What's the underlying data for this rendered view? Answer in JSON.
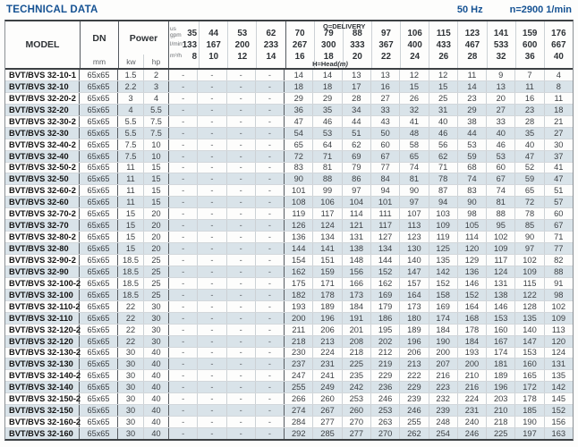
{
  "page": {
    "title": "TECHNICAL DATA",
    "frequency": "50 Hz",
    "speed": "n=2900 1/min"
  },
  "table": {
    "header": {
      "model": "MODEL",
      "dn": "DN",
      "dn_unit": "mm",
      "power": "Power",
      "kw": "kw",
      "hp": "hp",
      "delivery_label": "Q=DELIVERY",
      "head_label_main": "H=Head",
      "head_label_unit": "(m)",
      "unit_gpm_top": "us",
      "unit_gpm_bottom": "gpm",
      "unit_lmin": "l/min",
      "unit_m3h": "m³/h"
    },
    "flow": {
      "us_gpm": [
        35,
        44,
        53,
        62,
        70,
        79,
        88,
        97,
        106,
        115,
        123,
        141,
        159,
        176
      ],
      "l_min": [
        133,
        167,
        200,
        233,
        267,
        300,
        333,
        367,
        400,
        433,
        467,
        533,
        600,
        667
      ],
      "m3_h": [
        8,
        10,
        12,
        14,
        16,
        18,
        20,
        22,
        24,
        26,
        28,
        32,
        36,
        40
      ]
    },
    "rows": [
      {
        "model": "BVT/BVS 32-10-1",
        "dn": "65x65",
        "kw": "1.5",
        "hp": "2",
        "head": [
          "-",
          "-",
          "-",
          "-",
          14,
          14,
          13,
          13,
          12,
          12,
          11,
          9,
          7,
          4
        ]
      },
      {
        "model": "BVT/BVS 32-10",
        "dn": "65x65",
        "kw": "2.2",
        "hp": "3",
        "head": [
          "-",
          "-",
          "-",
          "-",
          18,
          18,
          17,
          16,
          15,
          15,
          14,
          13,
          11,
          8
        ]
      },
      {
        "model": "BVT/BVS 32-20-2",
        "dn": "65x65",
        "kw": "3",
        "hp": "4",
        "head": [
          "-",
          "-",
          "-",
          "-",
          29,
          29,
          28,
          27,
          26,
          25,
          23,
          20,
          16,
          11
        ]
      },
      {
        "model": "BVT/BVS 32-20",
        "dn": "65x65",
        "kw": "4",
        "hp": "5.5",
        "head": [
          "-",
          "-",
          "-",
          "-",
          36,
          35,
          34,
          33,
          32,
          31,
          29,
          27,
          23,
          18
        ]
      },
      {
        "model": "BVT/BVS 32-30-2",
        "dn": "65x65",
        "kw": "5.5",
        "hp": "7.5",
        "head": [
          "-",
          "-",
          "-",
          "-",
          47,
          46,
          44,
          43,
          41,
          40,
          38,
          33,
          28,
          21
        ]
      },
      {
        "model": "BVT/BVS 32-30",
        "dn": "65x65",
        "kw": "5.5",
        "hp": "7.5",
        "head": [
          "-",
          "-",
          "-",
          "-",
          54,
          53,
          51,
          50,
          48,
          46,
          44,
          40,
          35,
          27
        ]
      },
      {
        "model": "BVT/BVS 32-40-2",
        "dn": "65x65",
        "kw": "7.5",
        "hp": "10",
        "head": [
          "-",
          "-",
          "-",
          "-",
          65,
          64,
          62,
          60,
          58,
          56,
          53,
          46,
          40,
          30
        ]
      },
      {
        "model": "BVT/BVS 32-40",
        "dn": "65x65",
        "kw": "7.5",
        "hp": "10",
        "head": [
          "-",
          "-",
          "-",
          "-",
          72,
          71,
          69,
          67,
          65,
          62,
          59,
          53,
          47,
          37
        ]
      },
      {
        "model": "BVT/BVS 32-50-2",
        "dn": "65x65",
        "kw": "11",
        "hp": "15",
        "head": [
          "-",
          "-",
          "-",
          "-",
          83,
          81,
          79,
          77,
          74,
          71,
          68,
          60,
          52,
          41
        ]
      },
      {
        "model": "BVT/BVS 32-50",
        "dn": "65x65",
        "kw": "11",
        "hp": "15",
        "head": [
          "-",
          "-",
          "-",
          "-",
          90,
          88,
          86,
          84,
          81,
          78,
          74,
          67,
          59,
          47
        ]
      },
      {
        "model": "BVT/BVS 32-60-2",
        "dn": "65x65",
        "kw": "11",
        "hp": "15",
        "head": [
          "-",
          "-",
          "-",
          "-",
          101,
          99,
          97,
          94,
          90,
          87,
          83,
          74,
          65,
          51
        ]
      },
      {
        "model": "BVT/BVS 32-60",
        "dn": "65x65",
        "kw": "11",
        "hp": "15",
        "head": [
          "-",
          "-",
          "-",
          "-",
          108,
          106,
          104,
          101,
          97,
          94,
          90,
          81,
          72,
          57
        ]
      },
      {
        "model": "BVT/BVS 32-70-2",
        "dn": "65x65",
        "kw": "15",
        "hp": "20",
        "head": [
          "-",
          "-",
          "-",
          "-",
          119,
          117,
          114,
          111,
          107,
          103,
          98,
          88,
          78,
          60
        ]
      },
      {
        "model": "BVT/BVS 32-70",
        "dn": "65x65",
        "kw": "15",
        "hp": "20",
        "head": [
          "-",
          "-",
          "-",
          "-",
          126,
          124,
          121,
          117,
          113,
          109,
          105,
          95,
          85,
          67
        ]
      },
      {
        "model": "BVT/BVS 32-80-2",
        "dn": "65x65",
        "kw": "15",
        "hp": "20",
        "head": [
          "-",
          "-",
          "-",
          "-",
          136,
          134,
          131,
          127,
          123,
          119,
          114,
          102,
          90,
          71
        ]
      },
      {
        "model": "BVT/BVS 32-80",
        "dn": "65x65",
        "kw": "15",
        "hp": "20",
        "head": [
          "-",
          "-",
          "-",
          "-",
          144,
          141,
          138,
          134,
          130,
          125,
          120,
          109,
          97,
          77
        ]
      },
      {
        "model": "BVT/BVS 32-90-2",
        "dn": "65x65",
        "kw": "18.5",
        "hp": "25",
        "head": [
          "-",
          "-",
          "-",
          "-",
          154,
          151,
          148,
          144,
          140,
          135,
          129,
          117,
          102,
          82
        ]
      },
      {
        "model": "BVT/BVS 32-90",
        "dn": "65x65",
        "kw": "18.5",
        "hp": "25",
        "head": [
          "-",
          "-",
          "-",
          "-",
          162,
          159,
          156,
          152,
          147,
          142,
          136,
          124,
          109,
          88
        ]
      },
      {
        "model": "BVT/BVS 32-100-2",
        "dn": "65x65",
        "kw": "18.5",
        "hp": "25",
        "head": [
          "-",
          "-",
          "-",
          "-",
          175,
          171,
          166,
          162,
          157,
          152,
          146,
          131,
          115,
          91
        ]
      },
      {
        "model": "BVT/BVS 32-100",
        "dn": "65x65",
        "kw": "18.5",
        "hp": "25",
        "head": [
          "-",
          "-",
          "-",
          "-",
          182,
          178,
          173,
          169,
          164,
          158,
          152,
          138,
          122,
          98
        ]
      },
      {
        "model": "BVT/BVS 32-110-2",
        "dn": "65x65",
        "kw": "22",
        "hp": "30",
        "head": [
          "-",
          "-",
          "-",
          "-",
          193,
          189,
          184,
          179,
          173,
          169,
          164,
          146,
          128,
          102
        ]
      },
      {
        "model": "BVT/BVS 32-110",
        "dn": "65x65",
        "kw": "22",
        "hp": "30",
        "head": [
          "-",
          "-",
          "-",
          "-",
          200,
          196,
          191,
          186,
          180,
          174,
          168,
          153,
          135,
          109
        ]
      },
      {
        "model": "BVT/BVS 32-120-2",
        "dn": "65x65",
        "kw": "22",
        "hp": "30",
        "head": [
          "-",
          "-",
          "-",
          "-",
          211,
          206,
          201,
          195,
          189,
          184,
          178,
          160,
          140,
          113
        ]
      },
      {
        "model": "BVT/BVS 32-120",
        "dn": "65x65",
        "kw": "22",
        "hp": "30",
        "head": [
          "-",
          "-",
          "-",
          "-",
          218,
          213,
          208,
          202,
          196,
          190,
          184,
          167,
          147,
          120
        ]
      },
      {
        "model": "BVT/BVS 32-130-2",
        "dn": "65x65",
        "kw": "30",
        "hp": "40",
        "head": [
          "-",
          "-",
          "-",
          "-",
          230,
          224,
          218,
          212,
          206,
          200,
          193,
          174,
          153,
          124
        ]
      },
      {
        "model": "BVT/BVS 32-130",
        "dn": "65x65",
        "kw": "30",
        "hp": "40",
        "head": [
          "-",
          "-",
          "-",
          "-",
          237,
          231,
          225,
          219,
          213,
          207,
          200,
          181,
          160,
          131
        ]
      },
      {
        "model": "BVT/BVS 32-140-2",
        "dn": "65x65",
        "kw": "30",
        "hp": "40",
        "head": [
          "-",
          "-",
          "-",
          "-",
          247,
          241,
          235,
          229,
          222,
          216,
          210,
          189,
          165,
          135
        ]
      },
      {
        "model": "BVT/BVS 32-140",
        "dn": "65x65",
        "kw": "30",
        "hp": "40",
        "head": [
          "-",
          "-",
          "-",
          "-",
          255,
          249,
          242,
          236,
          229,
          223,
          216,
          196,
          172,
          142
        ]
      },
      {
        "model": "BVT/BVS 32-150-2",
        "dn": "65x65",
        "kw": "30",
        "hp": "40",
        "head": [
          "-",
          "-",
          "-",
          "-",
          266,
          260,
          253,
          246,
          239,
          232,
          224,
          203,
          178,
          145
        ]
      },
      {
        "model": "BVT/BVS 32-150",
        "dn": "65x65",
        "kw": "30",
        "hp": "40",
        "head": [
          "-",
          "-",
          "-",
          "-",
          274,
          267,
          260,
          253,
          246,
          239,
          231,
          210,
          185,
          152
        ]
      },
      {
        "model": "BVT/BVS 32-160-2",
        "dn": "65x65",
        "kw": "30",
        "hp": "40",
        "head": [
          "-",
          "-",
          "-",
          "-",
          284,
          277,
          270,
          263,
          255,
          248,
          240,
          218,
          190,
          156
        ]
      },
      {
        "model": "BVT/BVS 32-160",
        "dn": "65x65",
        "kw": "30",
        "hp": "40",
        "head": [
          "-",
          "-",
          "-",
          "-",
          292,
          285,
          277,
          270,
          262,
          254,
          246,
          225,
          197,
          163
        ]
      }
    ]
  }
}
